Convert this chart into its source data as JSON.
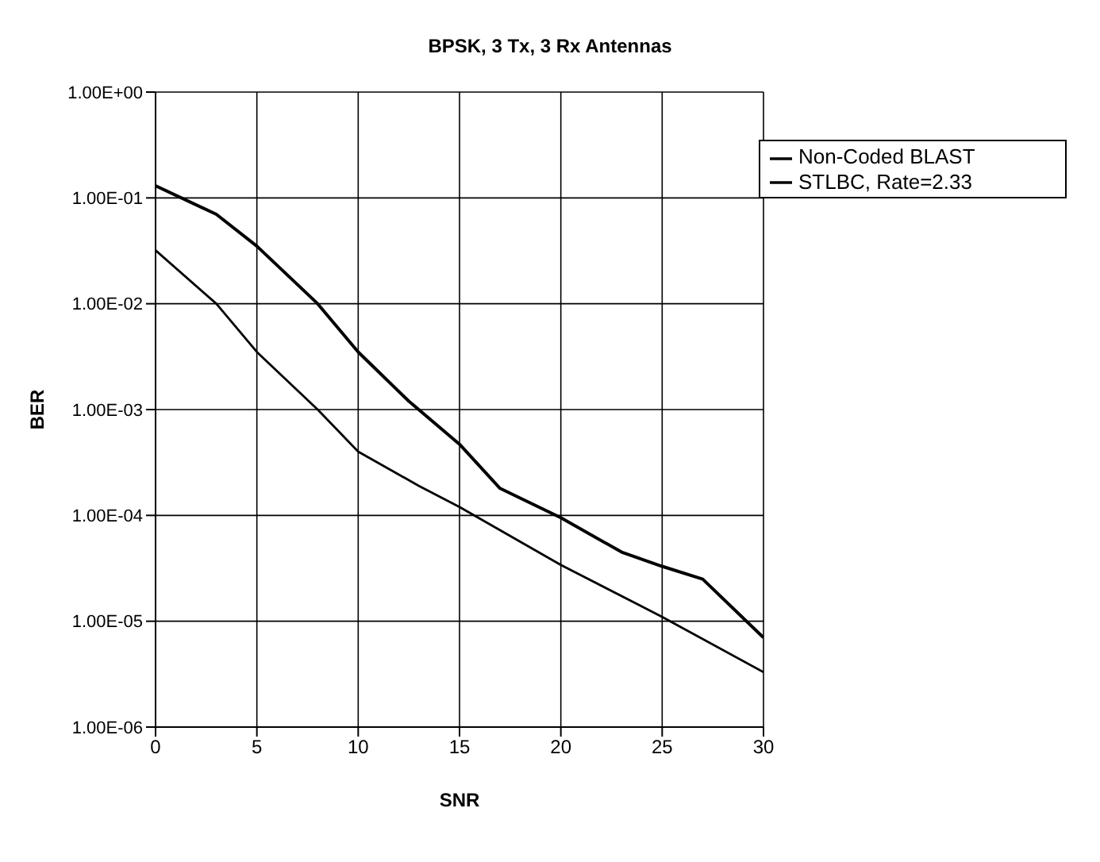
{
  "chart_data": {
    "type": "line",
    "title": "BPSK, 3 Tx, 3 Rx Antennas",
    "xlabel": "SNR",
    "ylabel": "BER",
    "series": [
      {
        "name": "Non-Coded BLAST",
        "color": "#000000",
        "x": [
          0,
          3,
          5,
          8,
          10,
          12.5,
          15,
          17,
          20,
          23,
          25,
          27,
          30
        ],
        "values": [
          0.13,
          0.07,
          0.035,
          0.01,
          0.0035,
          0.0012,
          0.00047,
          0.00018,
          9.5e-05,
          4.5e-05,
          3.3e-05,
          2.5e-05,
          7e-06
        ]
      },
      {
        "name": "STLBC, Rate=2.33",
        "color": "#000000",
        "x": [
          0,
          3,
          5,
          8,
          10,
          13,
          15,
          20,
          25,
          30
        ],
        "values": [
          0.032,
          0.01,
          0.0035,
          0.001,
          0.0004,
          0.00019,
          0.00012,
          3.4e-05,
          1.1e-05,
          3.3e-06
        ]
      }
    ],
    "xlim": [
      0,
      30
    ],
    "xticks": [
      0,
      5,
      10,
      15,
      20,
      25,
      30
    ],
    "ylim": [
      1e-06,
      1
    ],
    "yticks": [
      {
        "value": 1,
        "label": "1.00E+00"
      },
      {
        "value": 0.1,
        "label": "1.00E-01"
      },
      {
        "value": 0.01,
        "label": "1.00E-02"
      },
      {
        "value": 0.001,
        "label": "1.00E-03"
      },
      {
        "value": 0.0001,
        "label": "1.00E-04"
      },
      {
        "value": 1e-05,
        "label": "1.00E-05"
      },
      {
        "value": 1e-06,
        "label": "1.00E-06"
      }
    ],
    "log": true,
    "grid": true,
    "legend": "top right",
    "marker": "none",
    "line_style": "solid"
  }
}
